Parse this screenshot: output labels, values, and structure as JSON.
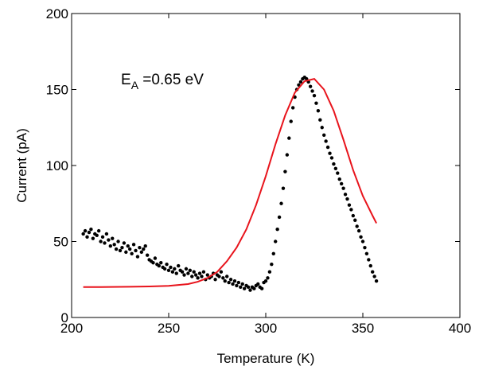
{
  "chart_data": {
    "type": "scatter",
    "xlabel": "Temperature (K)",
    "ylabel": "Current (pA)",
    "xlim": [
      200,
      400
    ],
    "ylim": [
      0,
      200
    ],
    "xticks": [
      "200",
      "250",
      "300",
      "350",
      "400"
    ],
    "yticks": [
      "0",
      "50",
      "100",
      "150",
      "200"
    ],
    "grid": false,
    "annotation": {
      "main": "E",
      "sub": "A",
      "rest": " =0.65 eV"
    },
    "series": [
      {
        "kind": "points",
        "color": "#000000",
        "x": [
          206,
          207,
          208,
          209,
          210,
          211,
          212,
          213,
          214,
          215,
          216,
          217,
          218,
          219,
          220,
          221,
          222,
          223,
          224,
          225,
          226,
          227,
          228,
          229,
          230,
          231,
          232,
          233,
          234,
          235,
          236,
          237,
          238,
          239,
          240,
          241,
          242,
          243,
          244,
          245,
          246,
          247,
          248,
          249,
          250,
          251,
          252,
          253,
          254,
          255,
          256,
          257,
          258,
          259,
          260,
          261,
          262,
          263,
          264,
          265,
          266,
          267,
          268,
          269,
          270,
          271,
          272,
          273,
          274,
          275,
          276,
          277,
          278,
          279,
          280,
          281,
          282,
          283,
          284,
          285,
          286,
          287,
          288,
          289,
          290,
          291,
          292,
          293,
          294,
          295,
          296,
          297,
          298,
          299,
          300,
          301,
          302,
          303,
          304,
          305,
          306,
          307,
          308,
          309,
          310,
          311,
          312,
          313,
          314,
          315,
          316,
          317,
          318,
          319,
          320,
          321,
          322,
          323,
          324,
          325,
          326,
          327,
          328,
          329,
          330,
          331,
          332,
          333,
          334,
          335,
          336,
          337,
          338,
          339,
          340,
          341,
          342,
          343,
          344,
          345,
          346,
          347,
          348,
          349,
          350,
          351,
          352,
          353,
          354,
          355,
          356,
          357
        ],
        "y": [
          55,
          57,
          53,
          56,
          58,
          52,
          55,
          54,
          57,
          50,
          53,
          49,
          55,
          51,
          47,
          52,
          48,
          45,
          50,
          44,
          46,
          49,
          43,
          47,
          45,
          42,
          48,
          44,
          40,
          46,
          43,
          45,
          47,
          41,
          38,
          37,
          36,
          39,
          35,
          34,
          36,
          33,
          32,
          35,
          31,
          33,
          30,
          32,
          29,
          34,
          31,
          30,
          28,
          32,
          29,
          31,
          27,
          30,
          28,
          26,
          29,
          27,
          30,
          25,
          28,
          26,
          27,
          29,
          25,
          28,
          27,
          30,
          26,
          24,
          27,
          23,
          25,
          22,
          24,
          21,
          23,
          20,
          22,
          19,
          21,
          20,
          18,
          20,
          19,
          21,
          22,
          20,
          19,
          23,
          24,
          26,
          30,
          35,
          42,
          50,
          58,
          66,
          75,
          85,
          96,
          107,
          118,
          129,
          138,
          145,
          150,
          153,
          155,
          157,
          158,
          157,
          155,
          152,
          149,
          146,
          141,
          136,
          130,
          125,
          120,
          116,
          112,
          108,
          105,
          101,
          98,
          95,
          91,
          88,
          85,
          81,
          78,
          74,
          71,
          67,
          64,
          60,
          57,
          53,
          50,
          46,
          42,
          38,
          34,
          30,
          27,
          24
        ]
      },
      {
        "kind": "line",
        "color": "#e8141c",
        "x": [
          206,
          210,
          220,
          230,
          240,
          250,
          260,
          265,
          270,
          275,
          280,
          285,
          290,
          295,
          300,
          305,
          310,
          315,
          320,
          325,
          330,
          335,
          340,
          345,
          350,
          355,
          357
        ],
        "y": [
          20,
          20,
          20.1,
          20.2,
          20.4,
          20.8,
          22,
          23.5,
          26,
          30,
          37,
          46,
          58,
          74,
          93,
          114,
          133,
          148,
          155.5,
          157,
          150,
          136,
          117,
          97,
          80,
          67,
          62
        ]
      }
    ]
  }
}
